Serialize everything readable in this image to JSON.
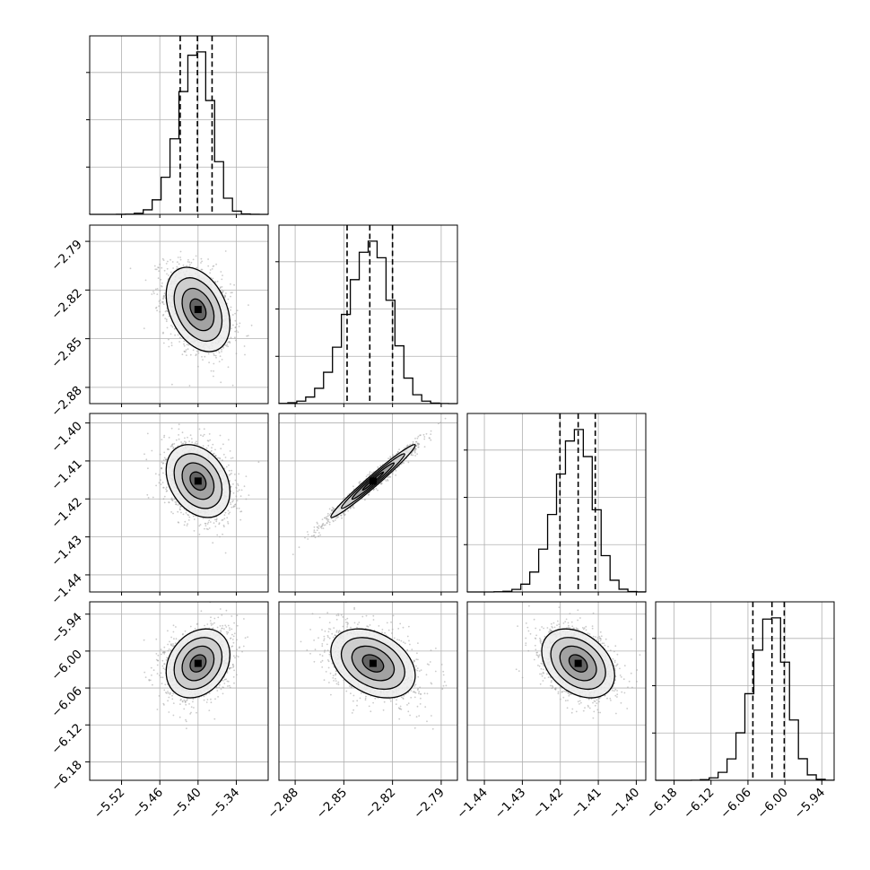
{
  "chart_data": {
    "type": "corner",
    "description_of_params": "4 parameters in a corner plot; diagonal = 1D histograms with 16/50/84% quantile dashed lines, off-diagonal = 2D scatter + density contours",
    "parameters": [
      {
        "index": 0,
        "range": [
          -5.57,
          -5.29
        ],
        "ticks": [
          "-5.52",
          "-5.46",
          "-5.40",
          "-5.34"
        ],
        "tick_values": [
          -5.52,
          -5.46,
          -5.4,
          -5.34
        ],
        "mean": -5.4,
        "sd": 0.025,
        "quantiles": [
          -5.428,
          -5.401,
          -5.378
        ],
        "hist_peak_bin": -5.395,
        "hist_ylim_ticks": 3
      },
      {
        "index": 1,
        "range": [
          -2.89,
          -2.78
        ],
        "ticks": [
          "-2.88",
          "-2.85",
          "-2.82",
          "-2.79"
        ],
        "tick_values": [
          -2.88,
          -2.85,
          -2.82,
          -2.79
        ],
        "mean": -2.832,
        "sd": 0.013,
        "quantiles": [
          -2.848,
          -2.834,
          -2.82
        ],
        "hist_ylim_ticks": 3
      },
      {
        "index": 2,
        "range": [
          -1.4445,
          -1.3975
        ],
        "ticks": [
          "-1.44",
          "-1.43",
          "-1.42",
          "-1.41",
          "-1.40"
        ],
        "tick_values": [
          -1.44,
          -1.43,
          -1.42,
          -1.41,
          -1.4
        ],
        "mean": -1.4153,
        "sd": 0.0048,
        "quantiles": [
          -1.4201,
          -1.4153,
          -1.4108
        ],
        "hist_ylim_ticks": 3
      },
      {
        "index": 3,
        "range": [
          -6.21,
          -5.92
        ],
        "ticks": [
          "-6.18",
          "-6.12",
          "-6.06",
          "-6.00",
          "-5.94"
        ],
        "tick_values": [
          -6.18,
          -6.12,
          -6.06,
          -6.0,
          -5.94
        ],
        "mean": -6.02,
        "sd": 0.028,
        "quantiles": [
          -6.052,
          -6.021,
          -6.001
        ],
        "hist_ylim_ticks": 3
      }
    ],
    "correlations": [
      {
        "pair": [
          0,
          1
        ],
        "rho": -0.35
      },
      {
        "pair": [
          0,
          2
        ],
        "rho": -0.3
      },
      {
        "pair": [
          0,
          3
        ],
        "rho": 0.25
      },
      {
        "pair": [
          1,
          2
        ],
        "rho": 0.98
      },
      {
        "pair": [
          1,
          3
        ],
        "rho": -0.35
      },
      {
        "pair": [
          2,
          3
        ],
        "rho": -0.35
      }
    ],
    "grid": true,
    "contour_levels_sigma": [
      0.5,
      1.0,
      1.5,
      2.0
    ],
    "samples_per_panel": 1500
  }
}
